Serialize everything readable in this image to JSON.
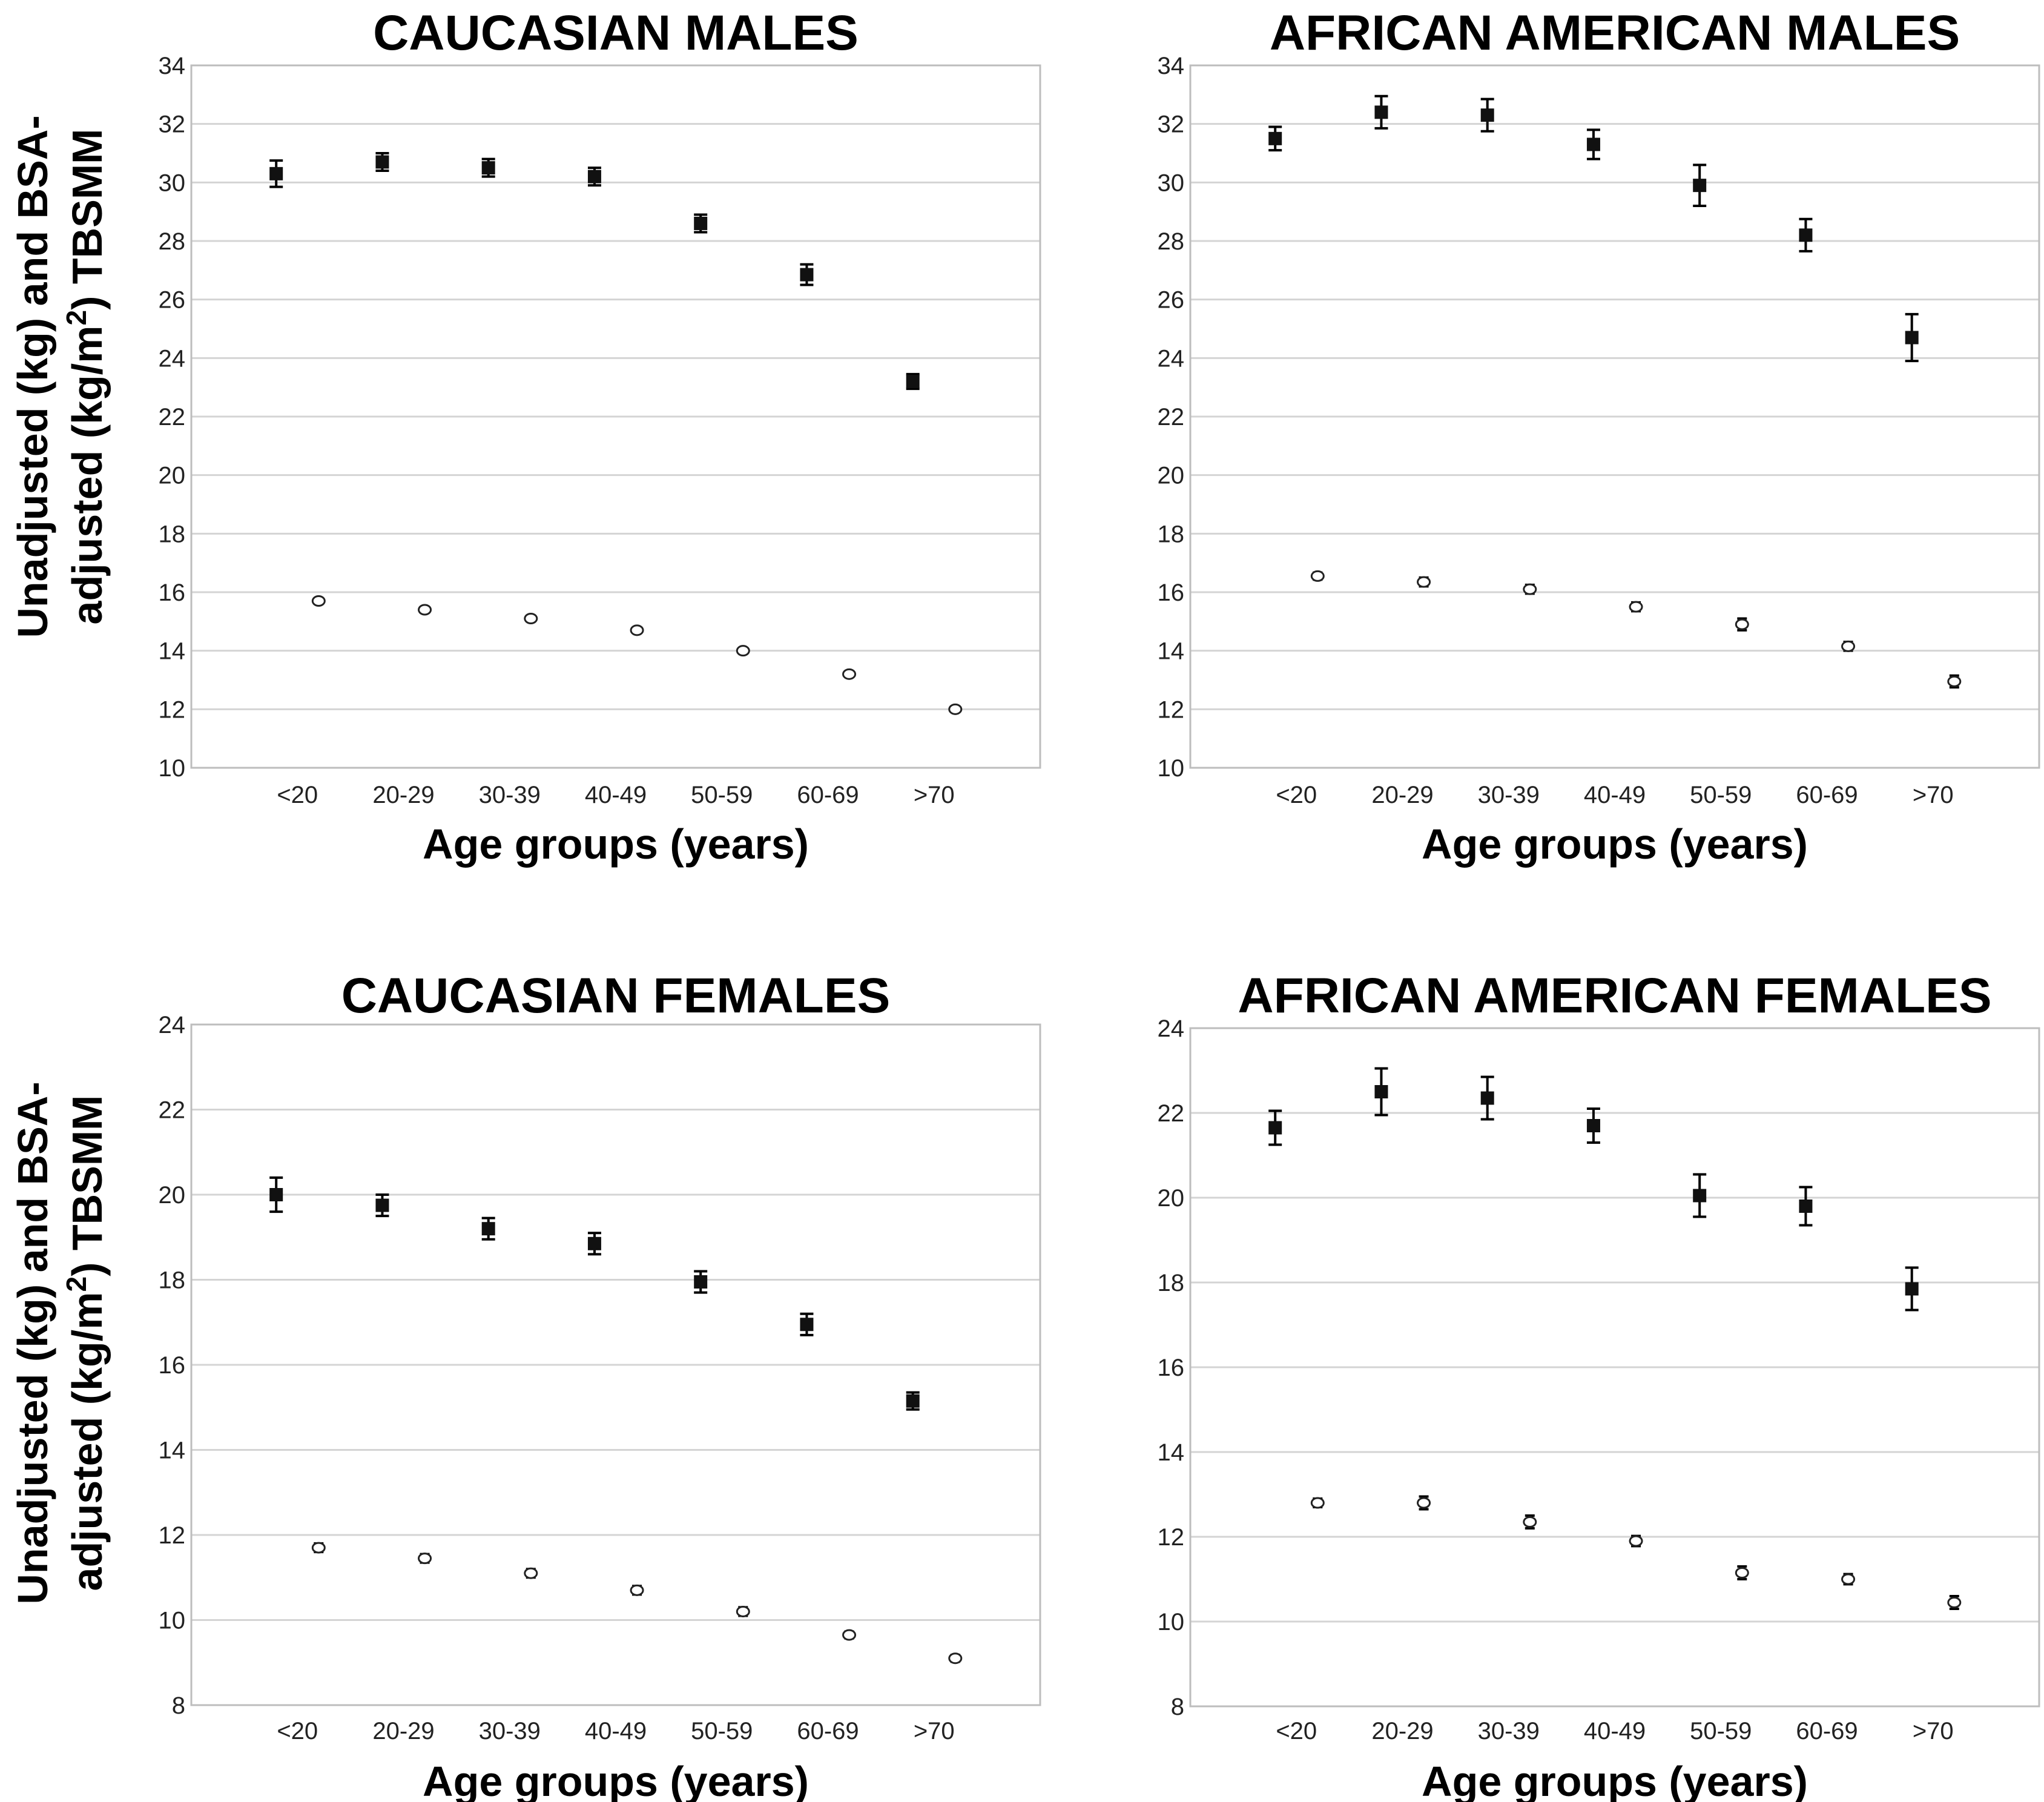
{
  "ylabel": {
    "line1": "Unadjusted (kg) and BSA-",
    "line2_pre": "adjusted (kg/m",
    "line2_sup": "2",
    "line2_post": ") TBSMM"
  },
  "chart_data": [
    {
      "type": "scatter",
      "title": "CAUCASIAN MALES",
      "xlabel": "Age groups (years)",
      "categories": [
        "<20",
        "20-29",
        "30-39",
        "40-49",
        "50-59",
        "60-69",
        ">70"
      ],
      "ylim": [
        10,
        34
      ],
      "yticks": [
        10,
        12,
        14,
        16,
        18,
        20,
        22,
        24,
        26,
        28,
        30,
        32,
        34
      ],
      "series": [
        {
          "name": "Unadjusted (kg)",
          "marker": "filled-square",
          "values": [
            30.3,
            30.7,
            30.5,
            30.2,
            28.6,
            26.85,
            23.2
          ],
          "errors": [
            0.45,
            0.3,
            0.3,
            0.3,
            0.3,
            0.35,
            0.25
          ]
        },
        {
          "name": "BSA-adjusted (kg/m2)",
          "marker": "open-circle",
          "values": [
            15.7,
            15.4,
            15.1,
            14.7,
            14.0,
            13.2,
            12.0
          ],
          "errors": [
            0.1,
            0.1,
            0.1,
            0.1,
            0.1,
            0.1,
            0.08
          ]
        }
      ]
    },
    {
      "type": "scatter",
      "title": "AFRICAN AMERICAN MALES",
      "xlabel": "Age groups (years)",
      "categories": [
        "<20",
        "20-29",
        "30-39",
        "40-49",
        "50-59",
        "60-69",
        ">70"
      ],
      "ylim": [
        10,
        34
      ],
      "yticks": [
        10,
        12,
        14,
        16,
        18,
        20,
        22,
        24,
        26,
        28,
        30,
        32,
        34
      ],
      "series": [
        {
          "name": "Unadjusted (kg)",
          "marker": "filled-square",
          "values": [
            31.5,
            32.4,
            32.3,
            31.3,
            29.9,
            28.2,
            24.7
          ],
          "errors": [
            0.4,
            0.55,
            0.55,
            0.5,
            0.7,
            0.55,
            0.8
          ]
        },
        {
          "name": "BSA-adjusted (kg/m2)",
          "marker": "open-circle",
          "values": [
            16.55,
            16.35,
            16.1,
            15.5,
            14.9,
            14.15,
            12.95
          ],
          "errors": [
            0.12,
            0.15,
            0.15,
            0.15,
            0.2,
            0.15,
            0.2
          ]
        }
      ]
    },
    {
      "type": "scatter",
      "title": "CAUCASIAN FEMALES",
      "xlabel": "Age groups (years)",
      "categories": [
        "<20",
        "20-29",
        "30-39",
        "40-49",
        "50-59",
        "60-69",
        ">70"
      ],
      "ylim": [
        8,
        24
      ],
      "yticks": [
        8,
        10,
        12,
        14,
        16,
        18,
        20,
        22,
        24
      ],
      "series": [
        {
          "name": "Unadjusted (kg)",
          "marker": "filled-square",
          "values": [
            20.0,
            19.75,
            19.2,
            18.85,
            17.95,
            16.95,
            15.15
          ],
          "errors": [
            0.4,
            0.25,
            0.25,
            0.25,
            0.25,
            0.25,
            0.2
          ]
        },
        {
          "name": "BSA-adjusted (kg/m2)",
          "marker": "open-circle",
          "values": [
            11.7,
            11.45,
            11.1,
            10.7,
            10.2,
            9.65,
            9.1
          ],
          "errors": [
            0.1,
            0.1,
            0.1,
            0.1,
            0.1,
            0.08,
            0.08
          ]
        }
      ]
    },
    {
      "type": "scatter",
      "title": "AFRICAN AMERICAN FEMALES",
      "xlabel": "Age groups (years)",
      "categories": [
        "<20",
        "20-29",
        "30-39",
        "40-49",
        "50-59",
        "60-69",
        ">70"
      ],
      "ylim": [
        8,
        24
      ],
      "yticks": [
        8,
        10,
        12,
        14,
        16,
        18,
        20,
        22,
        24
      ],
      "series": [
        {
          "name": "Unadjusted (kg)",
          "marker": "filled-square",
          "values": [
            21.65,
            22.5,
            22.35,
            21.7,
            20.05,
            19.8,
            17.85
          ],
          "errors": [
            0.4,
            0.55,
            0.5,
            0.4,
            0.5,
            0.45,
            0.5
          ]
        },
        {
          "name": "BSA-adjusted (kg/m2)",
          "marker": "open-circle",
          "values": [
            12.8,
            12.8,
            12.35,
            11.9,
            11.15,
            11.0,
            10.45
          ],
          "errors": [
            0.1,
            0.15,
            0.15,
            0.12,
            0.15,
            0.12,
            0.15
          ]
        }
      ]
    }
  ]
}
